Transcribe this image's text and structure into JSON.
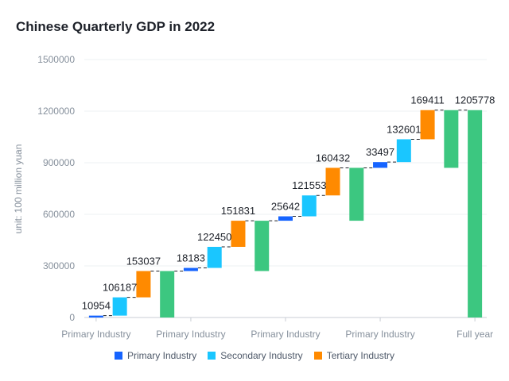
{
  "chart_data": {
    "type": "bar",
    "title": "Chinese Quarterly GDP in 2022",
    "ylabel": "unit: 100 million yuan",
    "ylim": [
      0,
      1500000
    ],
    "yticks": [
      0,
      300000,
      600000,
      900000,
      1200000,
      1500000
    ],
    "y_tick_labels": [
      "0",
      "300000",
      "600000",
      "900000",
      "1200000",
      "1500000"
    ],
    "x_tick_labels": [
      "Primary Industry",
      "Primary Industry",
      "Primary Industry",
      "Primary Industry",
      "Full year"
    ],
    "grid": true,
    "legend_position": "bottom",
    "legend": [
      {
        "name": "Primary Industry",
        "color": "#1664ff"
      },
      {
        "name": "Secondary Industry",
        "color": "#1ac6ff"
      },
      {
        "name": "Tertiary Industry",
        "color": "#ff8a00"
      }
    ],
    "total_color": "#3cc780",
    "bars": [
      {
        "kind": "primary",
        "start": 0,
        "end": 10954,
        "label": "10954"
      },
      {
        "kind": "secondary",
        "start": 10954,
        "end": 117141,
        "label": "106187"
      },
      {
        "kind": "tertiary",
        "start": 117141,
        "end": 270178,
        "label": "153037"
      },
      {
        "kind": "total",
        "start": 0,
        "end": 270178,
        "label": ""
      },
      {
        "kind": "primary",
        "start": 270178,
        "end": 288361,
        "label": "18183"
      },
      {
        "kind": "secondary",
        "start": 288361,
        "end": 410811,
        "label": "122450"
      },
      {
        "kind": "tertiary",
        "start": 410811,
        "end": 562642,
        "label": "151831"
      },
      {
        "kind": "total",
        "start": 270178,
        "end": 562642,
        "label": ""
      },
      {
        "kind": "primary",
        "start": 562642,
        "end": 588284,
        "label": "25642"
      },
      {
        "kind": "secondary",
        "start": 588284,
        "end": 709837,
        "label": "121553"
      },
      {
        "kind": "tertiary",
        "start": 709837,
        "end": 870269,
        "label": "160432"
      },
      {
        "kind": "total",
        "start": 562642,
        "end": 870269,
        "label": ""
      },
      {
        "kind": "primary",
        "start": 870269,
        "end": 903766,
        "label": "33497"
      },
      {
        "kind": "secondary",
        "start": 903766,
        "end": 1036367,
        "label": "132601"
      },
      {
        "kind": "tertiary",
        "start": 1036367,
        "end": 1205778,
        "label": "169411"
      },
      {
        "kind": "total",
        "start": 870269,
        "end": 1205778,
        "label": ""
      },
      {
        "kind": "total",
        "start": 0,
        "end": 1205778,
        "label": "1205778"
      }
    ]
  }
}
